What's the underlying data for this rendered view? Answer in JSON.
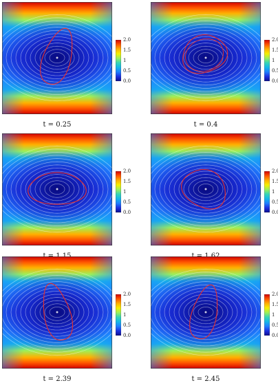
{
  "colorbar": {
    "ticks": [
      "2.0",
      "1.5",
      "1",
      "0.5",
      "0.0"
    ],
    "colors": [
      "#d10000",
      "#ff5500",
      "#ffb000",
      "#f6f000",
      "#9cf05a",
      "#36d6b6",
      "#15b8e8",
      "#1f7fff",
      "#1d2fe0",
      "#0b0d8e"
    ]
  },
  "panels": [
    {
      "caption": "t = 0.25",
      "contour_color": "#e8302c"
    },
    {
      "caption": "t = 0.4",
      "contour_color": "#e8302c"
    },
    {
      "caption": "t = 1.15",
      "contour_color": "#e8302c"
    },
    {
      "caption": "t = 1.62",
      "contour_color": "#e8302c"
    },
    {
      "caption": "t = 2.39",
      "contour_color": "#e8302c"
    },
    {
      "caption": "t = 2.45",
      "contour_color": "#e8302c"
    }
  ]
}
